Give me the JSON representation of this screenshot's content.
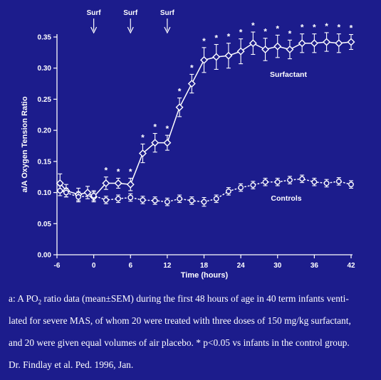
{
  "chart_data": {
    "type": "line",
    "xlabel": "Time (hours)",
    "ylabel": "a/A Oxygen Tension Ratio",
    "xlim": [
      -6,
      42
    ],
    "ylim": [
      0,
      0.35
    ],
    "xticks": [
      -6,
      0,
      6,
      12,
      18,
      24,
      30,
      36,
      42
    ],
    "yticks": [
      0.0,
      0.05,
      0.1,
      0.15,
      0.2,
      0.25,
      0.3,
      0.35
    ],
    "grid": false,
    "annotations": [
      {
        "text": "Surf",
        "x": 0
      },
      {
        "text": "Surf",
        "x": 6
      },
      {
        "text": "Surf",
        "x": 12
      }
    ],
    "significance_marker": "*",
    "series": [
      {
        "name": "Surfactant",
        "marker": "diamond",
        "line": "solid",
        "points": [
          {
            "x": -5.5,
            "y": 0.115,
            "err": 0.015
          },
          {
            "x": -4.5,
            "y": 0.103,
            "err": 0.01
          },
          {
            "x": -2.5,
            "y": 0.097,
            "err": 0.01
          },
          {
            "x": -1,
            "y": 0.1,
            "err": 0.01
          },
          {
            "x": 0,
            "y": 0.093,
            "err": 0.008
          },
          {
            "x": 2,
            "y": 0.115,
            "err": 0.01,
            "sig": true
          },
          {
            "x": 4,
            "y": 0.115,
            "err": 0.008,
            "sig": true
          },
          {
            "x": 6,
            "y": 0.113,
            "err": 0.01,
            "sig": true
          },
          {
            "x": 8,
            "y": 0.163,
            "err": 0.015,
            "sig": true
          },
          {
            "x": 10,
            "y": 0.18,
            "err": 0.015,
            "sig": true
          },
          {
            "x": 12,
            "y": 0.18,
            "err": 0.012,
            "sig": true
          },
          {
            "x": 14,
            "y": 0.237,
            "err": 0.015,
            "sig": true
          },
          {
            "x": 16,
            "y": 0.275,
            "err": 0.015,
            "sig": true
          },
          {
            "x": 18,
            "y": 0.313,
            "err": 0.02,
            "sig": true
          },
          {
            "x": 20,
            "y": 0.318,
            "err": 0.02,
            "sig": true
          },
          {
            "x": 22,
            "y": 0.32,
            "err": 0.02,
            "sig": true
          },
          {
            "x": 24,
            "y": 0.327,
            "err": 0.02,
            "sig": true
          },
          {
            "x": 26,
            "y": 0.34,
            "err": 0.018,
            "sig": true
          },
          {
            "x": 28,
            "y": 0.33,
            "err": 0.018,
            "sig": true
          },
          {
            "x": 30,
            "y": 0.335,
            "err": 0.018,
            "sig": true
          },
          {
            "x": 32,
            "y": 0.33,
            "err": 0.015,
            "sig": true
          },
          {
            "x": 34,
            "y": 0.34,
            "err": 0.015,
            "sig": true
          },
          {
            "x": 36,
            "y": 0.34,
            "err": 0.015,
            "sig": true
          },
          {
            "x": 38,
            "y": 0.342,
            "err": 0.015,
            "sig": true
          },
          {
            "x": 40,
            "y": 0.34,
            "err": 0.015,
            "sig": true
          },
          {
            "x": 42,
            "y": 0.342,
            "err": 0.012,
            "sig": true
          }
        ]
      },
      {
        "name": "Controls",
        "marker": "circle",
        "line": "dotted",
        "points": [
          {
            "x": -5.5,
            "y": 0.103,
            "err": 0.008
          },
          {
            "x": -4.5,
            "y": 0.1,
            "err": 0.007
          },
          {
            "x": -2.5,
            "y": 0.093,
            "err": 0.008
          },
          {
            "x": 0,
            "y": 0.095,
            "err": 0.008
          },
          {
            "x": 2,
            "y": 0.088,
            "err": 0.006
          },
          {
            "x": 4,
            "y": 0.09,
            "err": 0.006
          },
          {
            "x": 6,
            "y": 0.092,
            "err": 0.006
          },
          {
            "x": 8,
            "y": 0.088,
            "err": 0.006
          },
          {
            "x": 10,
            "y": 0.087,
            "err": 0.006
          },
          {
            "x": 12,
            "y": 0.085,
            "err": 0.006
          },
          {
            "x": 14,
            "y": 0.09,
            "err": 0.006
          },
          {
            "x": 16,
            "y": 0.087,
            "err": 0.006
          },
          {
            "x": 18,
            "y": 0.085,
            "err": 0.007
          },
          {
            "x": 20,
            "y": 0.09,
            "err": 0.006
          },
          {
            "x": 22,
            "y": 0.102,
            "err": 0.006
          },
          {
            "x": 24,
            "y": 0.108,
            "err": 0.006
          },
          {
            "x": 26,
            "y": 0.112,
            "err": 0.006
          },
          {
            "x": 28,
            "y": 0.117,
            "err": 0.006
          },
          {
            "x": 30,
            "y": 0.117,
            "err": 0.006
          },
          {
            "x": 32,
            "y": 0.12,
            "err": 0.006
          },
          {
            "x": 34,
            "y": 0.122,
            "err": 0.006
          },
          {
            "x": 36,
            "y": 0.117,
            "err": 0.006
          },
          {
            "x": 38,
            "y": 0.115,
            "err": 0.006
          },
          {
            "x": 40,
            "y": 0.118,
            "err": 0.006
          },
          {
            "x": 42,
            "y": 0.113,
            "err": 0.006
          }
        ]
      }
    ]
  },
  "caption": {
    "line1_a": "a: A PO",
    "line1_sub": "2",
    "line1_b": " ratio data (mean±SEM) during the first 48 hours of age in 40 term infants venti-",
    "line2": "lated for severe MAS, of whom 20 were treated with three doses of 150 mg/kg surfactant,",
    "line3": "and 20 were given equal volumes of air placebo. * p<0.05 vs infants in the control group.",
    "line4": "Dr. Findlay et al. Ped. 1996, Jan."
  },
  "colors": {
    "background": "#1c1c8c",
    "foreground": "#ffffff"
  }
}
